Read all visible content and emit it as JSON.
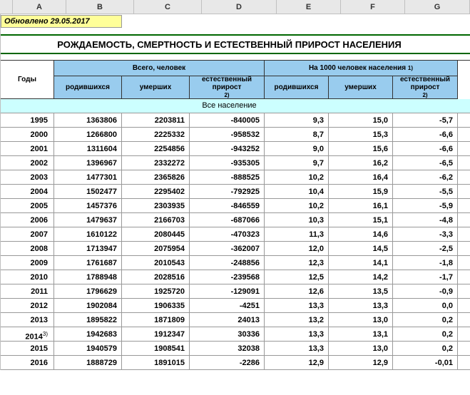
{
  "columns": [
    "A",
    "B",
    "C",
    "D",
    "E",
    "F",
    "G"
  ],
  "updated": "Обновлено 29.05.2017",
  "title": "РОЖДАЕМОСТЬ, СМЕРТНОСТЬ И ЕСТЕСТВЕННЫЙ ПРИРОСТ НАСЕЛЕНИЯ",
  "headers": {
    "years": "Годы",
    "total": "Всего, человек",
    "per1000": "На 1000 человек населения",
    "per1000_sup": "1)",
    "born": "родившихся",
    "died": "умерших",
    "natural": "естественный прирост",
    "natural_sup": "2)"
  },
  "section": "Все население",
  "rows": [
    {
      "year": "1995",
      "b": "1363806",
      "c": "2203811",
      "d": "-840005",
      "e": "9,3",
      "f": "15,0",
      "g": "-5,7"
    },
    {
      "year": "2000",
      "b": "1266800",
      "c": "2225332",
      "d": "-958532",
      "e": "8,7",
      "f": "15,3",
      "g": "-6,6"
    },
    {
      "year": "2001",
      "b": "1311604",
      "c": "2254856",
      "d": "-943252",
      "e": "9,0",
      "f": "15,6",
      "g": "-6,6"
    },
    {
      "year": "2002",
      "b": "1396967",
      "c": "2332272",
      "d": "-935305",
      "e": "9,7",
      "f": "16,2",
      "g": "-6,5"
    },
    {
      "year": "2003",
      "b": "1477301",
      "c": "2365826",
      "d": "-888525",
      "e": "10,2",
      "f": "16,4",
      "g": "-6,2"
    },
    {
      "year": "2004",
      "b": "1502477",
      "c": "2295402",
      "d": "-792925",
      "e": "10,4",
      "f": "15,9",
      "g": "-5,5"
    },
    {
      "year": "2005",
      "b": "1457376",
      "c": "2303935",
      "d": "-846559",
      "e": "10,2",
      "f": "16,1",
      "g": "-5,9"
    },
    {
      "year": "2006",
      "b": "1479637",
      "c": "2166703",
      "d": "-687066",
      "e": "10,3",
      "f": "15,1",
      "g": "-4,8"
    },
    {
      "year": "2007",
      "b": "1610122",
      "c": "2080445",
      "d": "-470323",
      "e": "11,3",
      "f": "14,6",
      "g": "-3,3"
    },
    {
      "year": "2008",
      "b": "1713947",
      "c": "2075954",
      "d": "-362007",
      "e": "12,0",
      "f": "14,5",
      "g": "-2,5"
    },
    {
      "year": "2009",
      "b": "1761687",
      "c": "2010543",
      "d": "-248856",
      "e": "12,3",
      "f": "14,1",
      "g": "-1,8"
    },
    {
      "year": "2010",
      "b": "1788948",
      "c": "2028516",
      "d": "-239568",
      "e": "12,5",
      "f": "14,2",
      "g": "-1,7"
    },
    {
      "year": "2011",
      "b": "1796629",
      "c": "1925720",
      "d": "-129091",
      "e": "12,6",
      "f": "13,5",
      "g": "-0,9"
    },
    {
      "year": "2012",
      "b": "1902084",
      "c": "1906335",
      "d": "-4251",
      "e": "13,3",
      "f": "13,3",
      "g": "0,0"
    },
    {
      "year": "2013",
      "b": "1895822",
      "c": "1871809",
      "d": "24013",
      "e": "13,2",
      "f": "13,0",
      "g": "0,2"
    },
    {
      "year": "2014",
      "sup": "3)",
      "b": "1942683",
      "c": "1912347",
      "d": "30336",
      "e": "13,3",
      "f": "13,1",
      "g": "0,2"
    },
    {
      "year": "2015",
      "b": "1940579",
      "c": "1908541",
      "d": "32038",
      "e": "13,3",
      "f": "13,0",
      "g": "0,2"
    },
    {
      "year": "2016",
      "b": "1888729",
      "c": "1891015",
      "d": "-2286",
      "e": "12,9",
      "f": "12,9",
      "g": "-0,01"
    }
  ]
}
